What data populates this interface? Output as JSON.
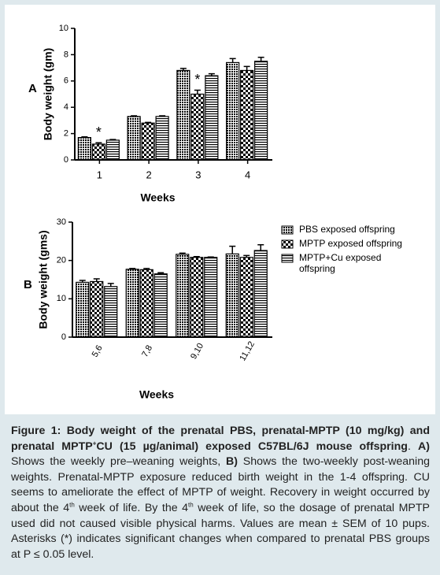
{
  "chart_data": [
    {
      "type": "bar",
      "panel": "A",
      "ylabel": "Body weight (gm)",
      "xlabel": "Weeks",
      "categories": [
        "1",
        "2",
        "3",
        "4"
      ],
      "series": [
        {
          "color": "#000000",
          "pattern": "dots",
          "values": [
            1.7,
            3.3,
            6.8,
            7.4
          ],
          "errors": [
            0.05,
            0.05,
            0.15,
            0.3
          ]
        },
        {
          "color": "#000000",
          "pattern": "checker",
          "values": [
            1.2,
            2.8,
            5.0,
            6.8
          ],
          "errors": [
            0.1,
            0.05,
            0.3,
            0.3
          ]
        },
        {
          "color": "#000000",
          "pattern": "stripes",
          "values": [
            1.5,
            3.3,
            6.4,
            7.5
          ],
          "errors": [
            0.05,
            0.05,
            0.15,
            0.3
          ]
        }
      ],
      "annotations": [
        {
          "text": "*",
          "category": "1"
        },
        {
          "text": "*",
          "category": "3"
        }
      ],
      "ylim": [
        0,
        10
      ],
      "yticks": [
        0,
        2,
        4,
        6,
        8,
        10
      ]
    },
    {
      "type": "bar",
      "panel": "B",
      "ylabel": "Body weight (gms)",
      "xlabel": "Weeks",
      "categories": [
        "5,6",
        "7,8",
        "9,10",
        "11,12"
      ],
      "series": [
        {
          "name": "PBS exposed offspring",
          "color": "#000000",
          "pattern": "dots",
          "values": [
            14.3,
            17.7,
            21.6,
            21.7
          ],
          "errors": [
            0.5,
            0.2,
            0.3,
            2.0
          ]
        },
        {
          "name": "MPTP exposed offspring",
          "color": "#000000",
          "pattern": "checker",
          "values": [
            14.5,
            17.6,
            20.8,
            20.8
          ],
          "errors": [
            0.7,
            0.3,
            0.2,
            0.5
          ]
        },
        {
          "name": "MPTP+Cu exposed offspring",
          "color": "#000000",
          "pattern": "stripes",
          "values": [
            13.2,
            16.5,
            20.8,
            22.6
          ],
          "errors": [
            0.8,
            0.3,
            0.1,
            1.5
          ]
        }
      ],
      "legend": "right",
      "ylim": [
        0,
        30
      ],
      "yticks": [
        0,
        10,
        20,
        30
      ]
    }
  ],
  "caption": {
    "segments": [
      "Figure 1: Body weight of the prenatal PBS, prenatal-MPTP (10 mg/kg) and prenatal MPTP",
      "+",
      "CU (15 µg/animal) exposed C57BL/6J mouse offspring",
      ". ",
      "A)",
      " Shows the weekly pre–weaning weights, ",
      "B)",
      " Shows the two-weekly post-weaning weights. Prenatal-MPTP exposure reduced birth weight in the 1-4 offspring. CU seems to ameliorate the effect of MPTP of weight. Recovery in weight occurred by about the 4",
      "th",
      " week of life. By the 4",
      "th",
      " week of life, so the dosage of prenatal MPTP used did not caused visible physical harms. Values are mean ± SEM of 10 pups. Asterisks (*) indicates significant changes when compared to prenatal PBS groups at P ≤ 0.05 level."
    ]
  }
}
